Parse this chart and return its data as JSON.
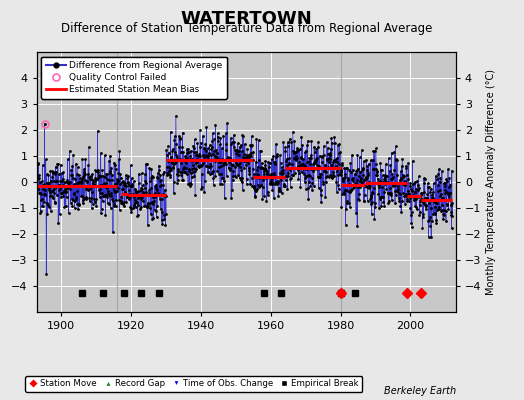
{
  "title": "WATERTOWN",
  "subtitle": "Difference of Station Temperature Data from Regional Average",
  "ylabel_right": "Monthly Temperature Anomaly Difference (°C)",
  "ylim": [
    -5,
    5
  ],
  "yticks": [
    -4,
    -3,
    -2,
    -1,
    0,
    1,
    2,
    3,
    4
  ],
  "xlim": [
    1893,
    2013
  ],
  "xticks": [
    1900,
    1920,
    1940,
    1960,
    1980,
    2000
  ],
  "background_color": "#e8e8e8",
  "plot_bg_color": "#c8c8c8",
  "grid_color": "#ffffff",
  "line_color": "#3333cc",
  "marker_color": "#000000",
  "bias_color": "#ff0000",
  "qc_color": "#ff69b4",
  "title_fontsize": 13,
  "subtitle_fontsize": 8.5,
  "watermark": "Berkeley Earth",
  "seed": 42,
  "year_start": 1893,
  "year_end": 2012,
  "station_move_years": [
    1980,
    1999,
    2003
  ],
  "empirical_break_years": [
    1906,
    1912,
    1918,
    1923,
    1928,
    1958,
    1963,
    1980,
    1984
  ],
  "vertical_line_years": [
    1916,
    1980
  ],
  "bias_segments": [
    {
      "start": 1893,
      "end": 1916,
      "value": -0.15
    },
    {
      "start": 1917,
      "end": 1919,
      "value": -0.45
    },
    {
      "start": 1919,
      "end": 1930,
      "value": -0.5
    },
    {
      "start": 1930,
      "end": 1955,
      "value": 0.85
    },
    {
      "start": 1955,
      "end": 1964,
      "value": 0.2
    },
    {
      "start": 1964,
      "end": 1980,
      "value": 0.55
    },
    {
      "start": 1980,
      "end": 1987,
      "value": -0.1
    },
    {
      "start": 1987,
      "end": 1999,
      "value": -0.05
    },
    {
      "start": 1999,
      "end": 2003,
      "value": -0.55
    },
    {
      "start": 2003,
      "end": 2012,
      "value": -0.7
    }
  ],
  "qc_fail_year": 1895.25,
  "qc_fail_value": 2.25,
  "spike_year": 1895.75,
  "spike_value": -3.55
}
